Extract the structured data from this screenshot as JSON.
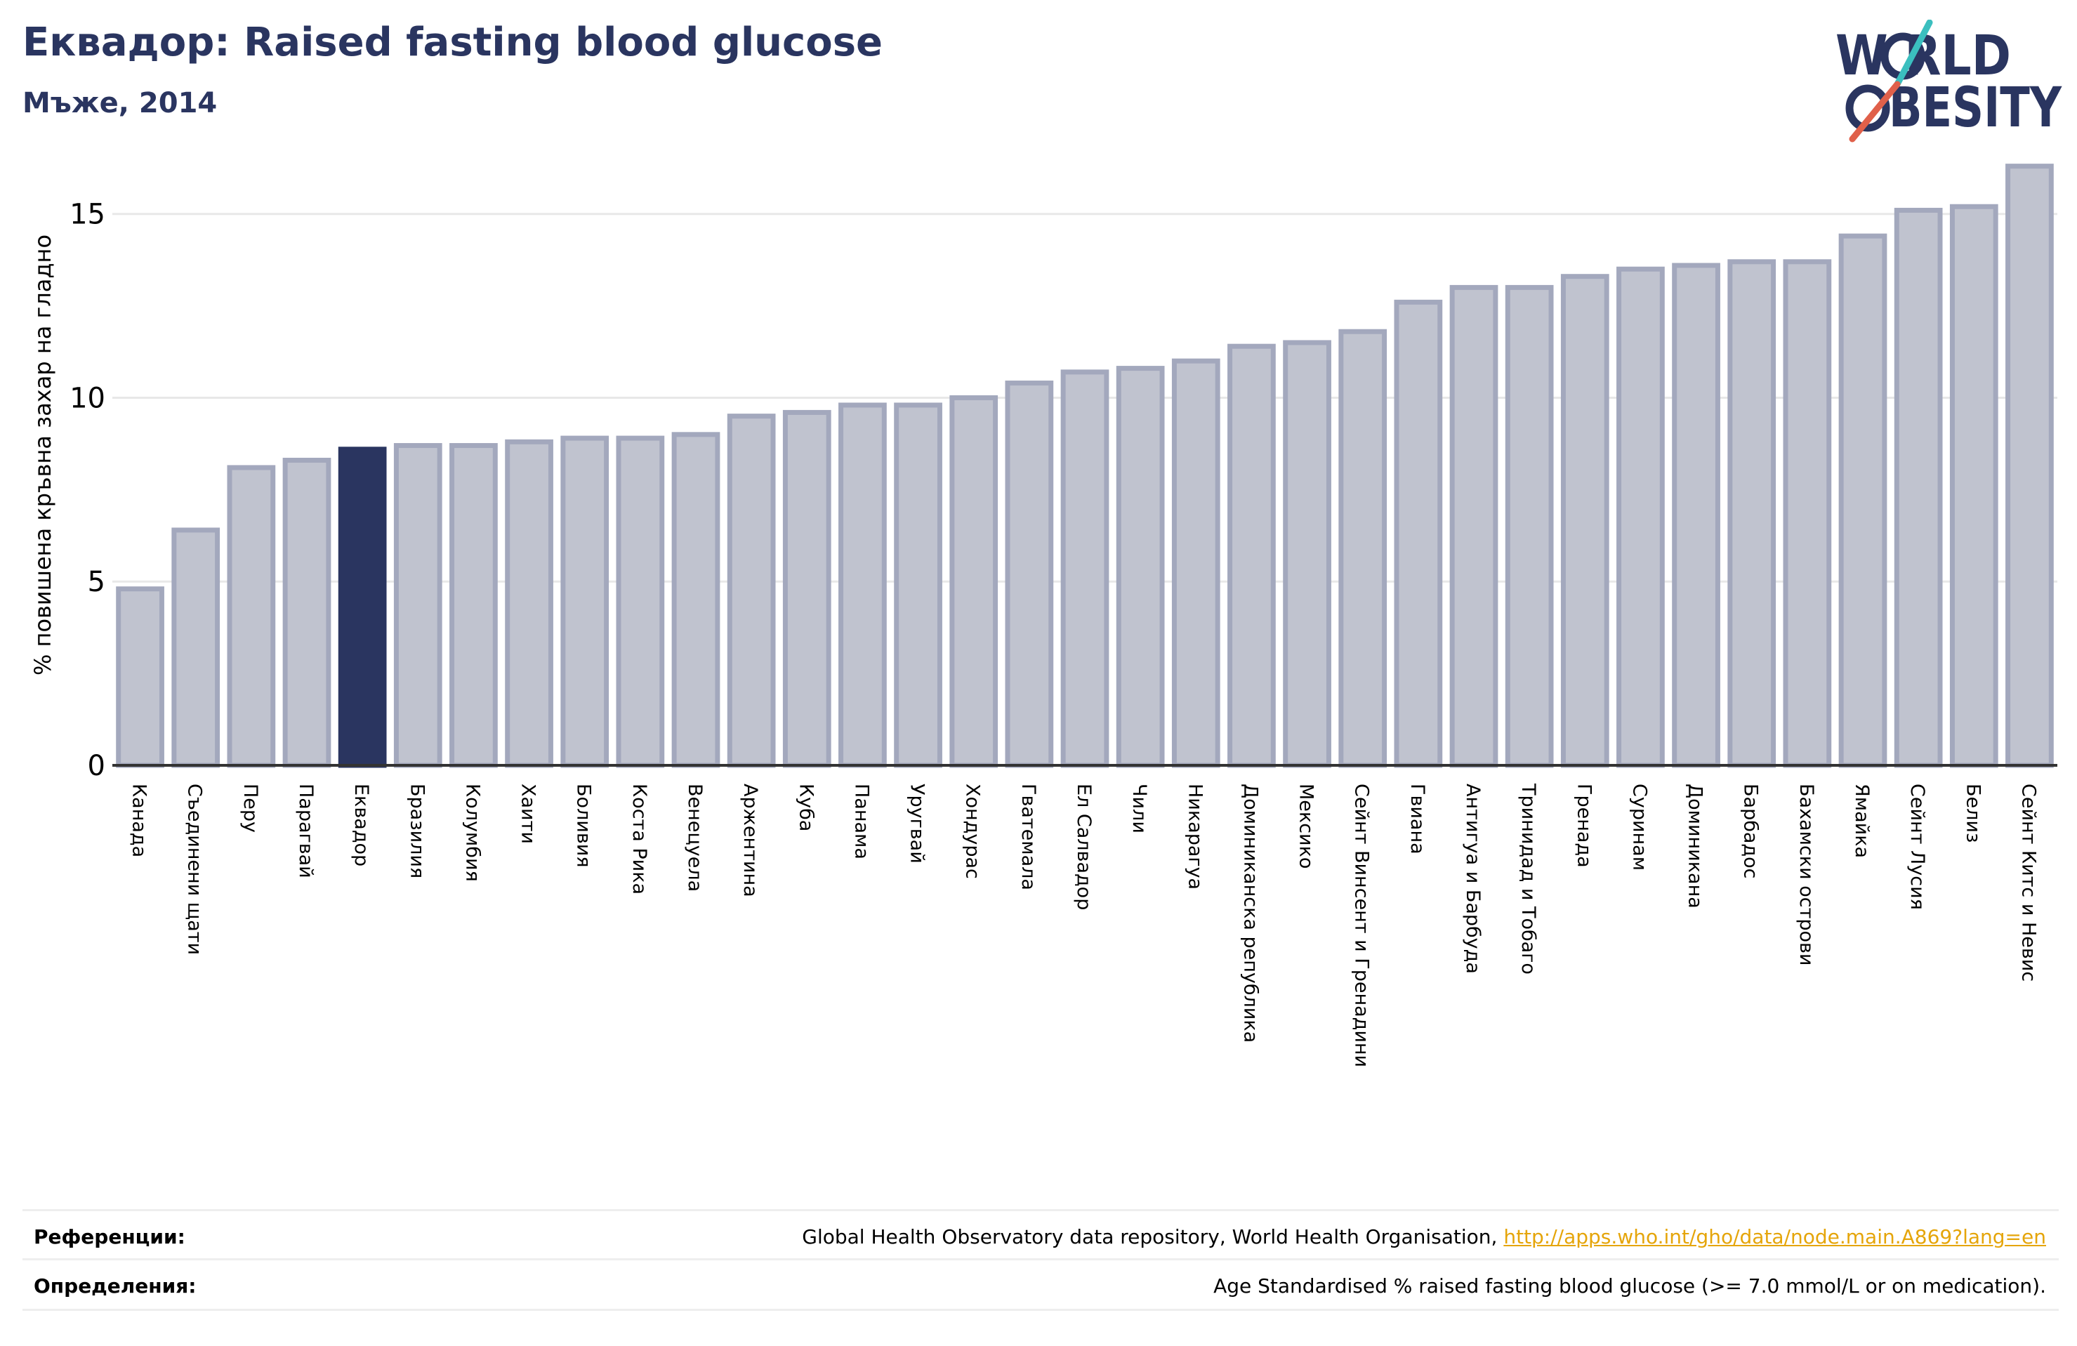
{
  "header": {
    "title": "Еквадор: Raised fasting blood glucose",
    "subtitle": "Мъже, 2014"
  },
  "logo": {
    "line1": "W RLD",
    "line2": "BESITY",
    "text": "WORLD OBESITY",
    "colors": {
      "text": "#2a3560",
      "slash_teal": "#3bbfbf",
      "slash_red": "#e0604a"
    }
  },
  "chart_data": {
    "type": "bar",
    "title": "",
    "xlabel": "",
    "ylabel": "% повишена кръвна захар на гладно",
    "ylim": [
      0,
      17
    ],
    "yticks": [
      0,
      5,
      10,
      15
    ],
    "grid": true,
    "highlight": "Еквадор",
    "colors": {
      "bar": "#c0c3cf",
      "bar_edge": "#a3a8bd",
      "highlight": "#2a3560",
      "axis": "#333333",
      "grid": "#e8e8e8"
    },
    "categories": [
      "Канада",
      "Съединени щати",
      "Перу",
      "Парагвай",
      "Еквадор",
      "Бразилия",
      "Колумбия",
      "Хаити",
      "Боливия",
      "Коста Рика",
      "Венецуела",
      "Аржентина",
      "Куба",
      "Панама",
      "Уругвай",
      "Хондурас",
      "Гватемала",
      "Ел Салвадор",
      "Чили",
      "Никарагуа",
      "Доминиканска република",
      "Мексико",
      "Сейнт Винсент и Гренадини",
      "Гвиана",
      "Антигуа и Барбуда",
      "Тринидад и Тобаго",
      "Гренада",
      "Суринам",
      "Доминикана",
      "Барбадос",
      "Бахамски острови",
      "Ямайка",
      "Сейнт Лусия",
      "Белиз",
      "Сейнт Китс и Невис"
    ],
    "values": [
      4.8,
      6.4,
      8.1,
      8.3,
      8.6,
      8.7,
      8.7,
      8.8,
      8.9,
      8.9,
      9.0,
      9.5,
      9.6,
      9.8,
      9.8,
      10.0,
      10.4,
      10.7,
      10.8,
      11.0,
      11.4,
      11.5,
      11.8,
      12.6,
      13.0,
      13.0,
      13.3,
      13.5,
      13.6,
      13.7,
      13.7,
      14.4,
      15.1,
      15.2,
      16.3
    ]
  },
  "footer": {
    "references_label": "Референции:",
    "references_text": "Global Health Observatory data repository, World Health Organisation, ",
    "references_link": "http://apps.who.int/gho/data/node.main.A869?lang=en",
    "definitions_label": "Определения:",
    "definitions_text": "Age Standardised % raised fasting blood glucose (>= 7.0 mmol/L or on medication)."
  }
}
